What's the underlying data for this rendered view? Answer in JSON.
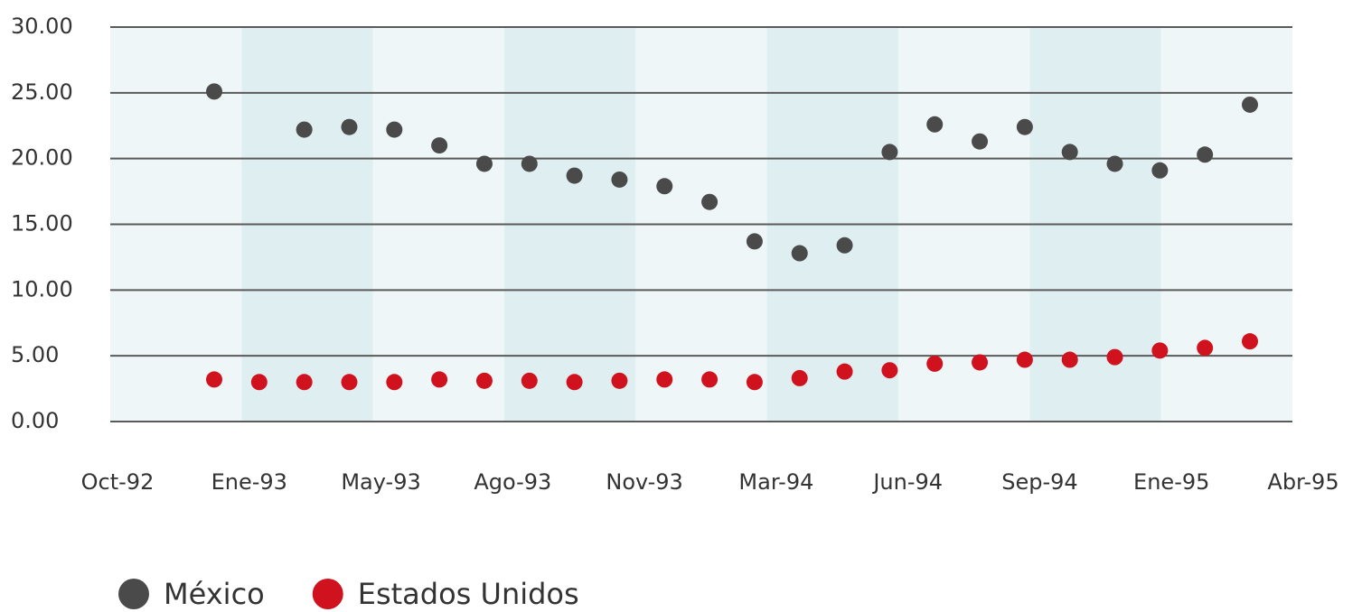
{
  "chart_data": {
    "type": "scatter",
    "categories": [
      null,
      null,
      null,
      null,
      null,
      null,
      null,
      null,
      null,
      null,
      null,
      null,
      null,
      null,
      null,
      null,
      null,
      null,
      null,
      null,
      null,
      null,
      null,
      null
    ],
    "xtick_labels": [
      "Oct-92",
      "Ene-93",
      "May-93",
      "Ago-93",
      "Nov-93",
      "Mar-94",
      "Jun-94",
      "Sep-94",
      "Ene-95",
      "Abr-95"
    ],
    "series": [
      {
        "name": "México",
        "color": "#4a4a4a",
        "values": [
          25.1,
          null,
          22.2,
          22.4,
          22.2,
          21.0,
          19.6,
          19.6,
          18.7,
          18.4,
          17.9,
          16.7,
          13.7,
          12.8,
          13.4,
          20.5,
          22.6,
          21.3,
          22.4,
          20.5,
          19.6,
          19.1,
          20.3,
          24.1
        ]
      },
      {
        "name": "Estados Unidos",
        "color": "#d0121f",
        "values": [
          3.2,
          3.0,
          3.0,
          3.0,
          3.0,
          3.2,
          3.1,
          3.1,
          3.0,
          3.1,
          3.2,
          3.2,
          3.0,
          3.3,
          3.8,
          3.9,
          4.4,
          4.5,
          4.7,
          4.7,
          4.9,
          5.4,
          5.6,
          6.1
        ]
      }
    ],
    "ylim": [
      0,
      30
    ],
    "yticks": [
      {
        "value": 0,
        "label": "0.00"
      },
      {
        "value": 5,
        "label": "5.00"
      },
      {
        "value": 10,
        "label": "10.00"
      },
      {
        "value": 15,
        "label": "15.00"
      },
      {
        "value": 20,
        "label": "20.00"
      },
      {
        "value": 25,
        "label": "25.00"
      },
      {
        "value": 30,
        "label": "30.00"
      }
    ],
    "grid": true,
    "legend": "bottom"
  }
}
